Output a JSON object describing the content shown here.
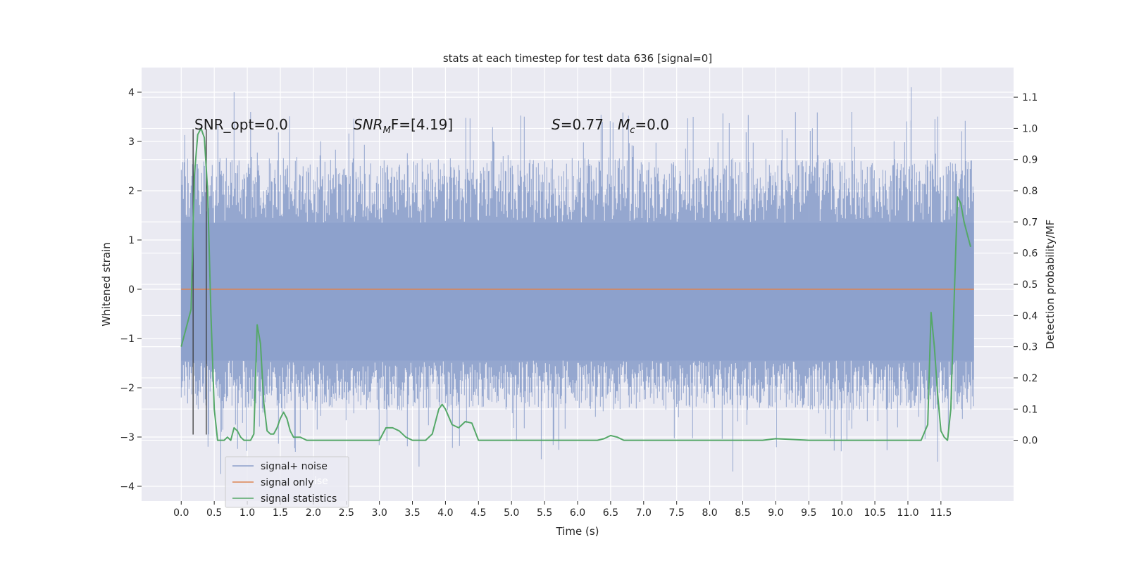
{
  "chart_data": {
    "type": "line",
    "title": "stats at each timestep for test data 636 [signal=0]",
    "xlabel": "Time (s)",
    "ylabel_left": "Whitened strain",
    "ylabel_right": "Detection probability/MF",
    "xlim": [
      -0.6,
      12.6
    ],
    "ylim_left": [
      -4.3,
      4.5
    ],
    "ylim_right": [
      -0.195,
      1.195
    ],
    "x_ticks": [
      0.0,
      0.5,
      1.0,
      1.5,
      2.0,
      2.5,
      3.0,
      3.5,
      4.0,
      4.5,
      5.0,
      5.5,
      6.0,
      6.5,
      7.0,
      7.5,
      8.0,
      8.5,
      9.0,
      9.5,
      10.0,
      10.5,
      11.0,
      11.5
    ],
    "x_tick_labels": [
      "0.0",
      "0.5",
      "1.0",
      "1.5",
      "2.0",
      "2.5",
      "3.0",
      "3.5",
      "4.0",
      "4.5",
      "5.0",
      "5.5",
      "6.0",
      "6.5",
      "7.0",
      "7.5",
      "8.0",
      "8.5",
      "9.0",
      "9.5",
      "10.0",
      "10.5",
      "11.0",
      "11.5"
    ],
    "y_left_ticks": [
      4,
      3,
      2,
      1,
      0,
      -1,
      -2,
      -3,
      -4
    ],
    "y_left_tick_labels": [
      "4",
      "3",
      "2",
      "1",
      "0",
      "−1",
      "−2",
      "−3",
      "−4"
    ],
    "y_right_ticks": [
      1.1,
      1.0,
      0.9,
      0.8,
      0.7,
      0.6,
      0.5,
      0.4,
      0.3,
      0.2,
      0.1,
      0.0
    ],
    "y_right_tick_labels": [
      "1.1",
      "1.0",
      "0.9",
      "0.8",
      "0.7",
      "0.6",
      "0.5",
      "0.4",
      "0.3",
      "0.2",
      "0.1",
      "0.0"
    ],
    "grid": true,
    "legend_position": "lower-left",
    "legend": [
      {
        "label": "signal+ noise",
        "color": "#8ca0cb"
      },
      {
        "label": "signal only",
        "color": "#dd8452"
      },
      {
        "label": "signal statistics",
        "color": "#55a868"
      }
    ],
    "legend_ghost_text": "ise",
    "annotations": {
      "snr_opt": "SNR_opt=0.0",
      "snr_mf_prefix": "SNR",
      "snr_mf_sub": "M",
      "snr_mf_suffix": "F=[4.19]",
      "s_label": "S",
      "s_value": "=0.77",
      "mc_label": "M",
      "mc_sub": "c",
      "mc_value": "=0.0"
    },
    "vertical_markers_x": [
      0.18,
      0.38
    ],
    "vertical_markers_range_left": [
      -2.95,
      3.25
    ],
    "noise_series": {
      "name": "signal+ noise",
      "x_range": [
        0.0,
        12.0
      ],
      "core_band": [
        -1.45,
        1.35
      ],
      "typical_extent": [
        -2.4,
        2.6
      ],
      "max_peak": 4.1,
      "min_peak": -3.7
    },
    "signal_only": {
      "name": "signal only",
      "x": [
        0.0,
        12.0
      ],
      "y": [
        0.0,
        0.0
      ]
    },
    "series": [
      {
        "name": "signal statistics",
        "axis": "right",
        "x": [
          0.0,
          0.15,
          0.2,
          0.25,
          0.3,
          0.35,
          0.4,
          0.45,
          0.5,
          0.55,
          0.6,
          0.65,
          0.7,
          0.75,
          0.8,
          0.85,
          0.9,
          0.95,
          1.0,
          1.05,
          1.1,
          1.15,
          1.2,
          1.25,
          1.3,
          1.35,
          1.4,
          1.45,
          1.5,
          1.55,
          1.6,
          1.65,
          1.7,
          1.75,
          1.8,
          1.85,
          1.9,
          2.0,
          2.5,
          3.0,
          3.1,
          3.2,
          3.3,
          3.4,
          3.5,
          3.6,
          3.7,
          3.8,
          3.9,
          3.95,
          4.0,
          4.1,
          4.2,
          4.3,
          4.4,
          4.5,
          4.6,
          4.8,
          5.0,
          5.5,
          6.0,
          6.3,
          6.4,
          6.5,
          6.6,
          6.7,
          7.0,
          8.0,
          8.8,
          9.0,
          9.2,
          9.5,
          10.0,
          11.0,
          11.2,
          11.3,
          11.35,
          11.4,
          11.45,
          11.5,
          11.55,
          11.6,
          11.65,
          11.7,
          11.75,
          11.8,
          11.85,
          11.9,
          11.95
        ],
        "y": [
          0.3,
          0.42,
          0.85,
          0.98,
          1.0,
          0.97,
          0.8,
          0.4,
          0.1,
          0.0,
          0.0,
          0.0,
          0.01,
          0.0,
          0.04,
          0.03,
          0.01,
          0.0,
          0.0,
          0.0,
          0.02,
          0.37,
          0.31,
          0.12,
          0.03,
          0.02,
          0.02,
          0.04,
          0.07,
          0.09,
          0.07,
          0.03,
          0.01,
          0.01,
          0.01,
          0.005,
          0.0,
          0.0,
          0.0,
          0.0,
          0.04,
          0.04,
          0.03,
          0.01,
          0.0,
          0.0,
          0.0,
          0.02,
          0.1,
          0.115,
          0.1,
          0.05,
          0.04,
          0.06,
          0.055,
          0.0,
          0.0,
          0.0,
          0.0,
          0.0,
          0.0,
          0.0,
          0.005,
          0.015,
          0.01,
          0.0,
          0.0,
          0.0,
          0.0,
          0.005,
          0.003,
          0.0,
          0.0,
          0.0,
          0.0,
          0.05,
          0.41,
          0.3,
          0.15,
          0.03,
          0.01,
          0.0,
          0.1,
          0.45,
          0.78,
          0.76,
          0.7,
          0.66,
          0.62
        ]
      }
    ]
  }
}
